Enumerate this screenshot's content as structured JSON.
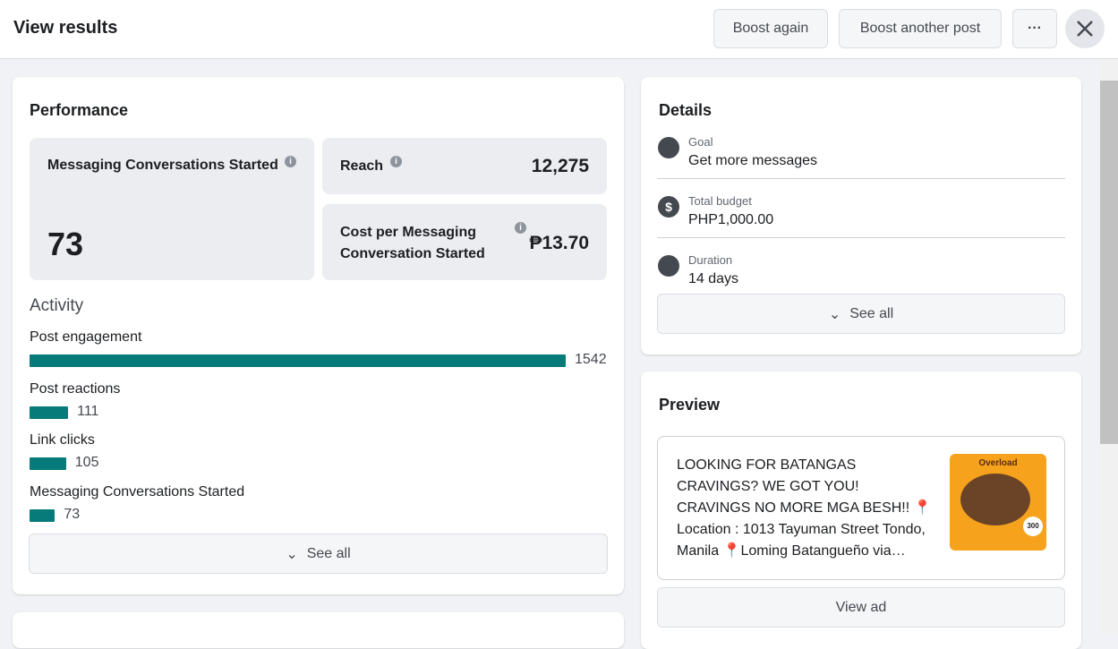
{
  "header": {
    "title": "View results",
    "buttons": [
      "Boost again",
      "Boost another post"
    ]
  },
  "performance": {
    "title": "Performance",
    "metrics": [
      {
        "label": "Messaging Conversations Started",
        "value": "73"
      },
      {
        "label": "Reach",
        "value": "12,275"
      },
      {
        "label": "Cost per Messaging Conversation Started",
        "value": "₱13.70"
      }
    ]
  },
  "activity": {
    "title": "Activity",
    "items": [
      {
        "label": "Post engagement",
        "value": 1542
      },
      {
        "label": "Post reactions",
        "value": 111
      },
      {
        "label": "Link clicks",
        "value": 105
      },
      {
        "label": "Messaging Conversations Started",
        "value": 73
      }
    ],
    "see_all": "See all"
  },
  "details": {
    "title": "Details",
    "items": [
      {
        "label": "Goal",
        "value": "Get more messages"
      },
      {
        "label": "Total budget",
        "value": "PHP1,000.00"
      },
      {
        "label": "Duration",
        "value": "14 days"
      }
    ],
    "see_all": "See all"
  },
  "preview": {
    "title": "Preview",
    "text": "LOOKING FOR BATANGAS CRAVINGS? WE GOT YOU! CRAVINGS NO MORE MGA BESH!! 📍Location : 1013 Tayuman Street Tondo, Manila 📍Loming Batangueño via Google Map and...",
    "image_labels": [
      "Overload",
      "300"
    ],
    "view_ad": "View ad"
  }
}
